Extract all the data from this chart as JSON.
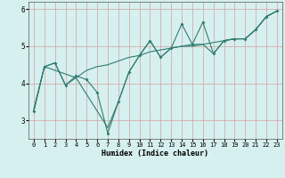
{
  "xlabel": "Humidex (Indice chaleur)",
  "background_color": "#d6f0ef",
  "grid_color": "#e8c8c8",
  "line_color": "#2e7d70",
  "xlim": [
    -0.5,
    23.5
  ],
  "ylim": [
    2.5,
    6.2
  ],
  "yticks": [
    3,
    4,
    5,
    6
  ],
  "xticks": [
    0,
    1,
    2,
    3,
    4,
    5,
    6,
    7,
    8,
    9,
    10,
    11,
    12,
    13,
    14,
    15,
    16,
    17,
    18,
    19,
    20,
    21,
    22,
    23
  ],
  "series_main": [
    [
      0,
      3.25
    ],
    [
      1,
      4.45
    ],
    [
      2,
      4.55
    ],
    [
      3,
      3.95
    ],
    [
      4,
      4.2
    ],
    [
      5,
      4.1
    ],
    [
      6,
      3.75
    ],
    [
      7,
      2.65
    ],
    [
      8,
      3.5
    ],
    [
      9,
      4.3
    ],
    [
      10,
      4.75
    ],
    [
      11,
      5.15
    ],
    [
      12,
      4.7
    ],
    [
      13,
      4.95
    ],
    [
      14,
      5.6
    ],
    [
      15,
      5.05
    ],
    [
      16,
      5.65
    ],
    [
      17,
      4.8
    ],
    [
      18,
      5.15
    ],
    [
      19,
      5.2
    ],
    [
      20,
      5.2
    ],
    [
      21,
      5.45
    ],
    [
      22,
      5.8
    ],
    [
      23,
      5.95
    ]
  ],
  "series_trend": [
    [
      0,
      3.3
    ],
    [
      1,
      4.45
    ],
    [
      2,
      4.55
    ],
    [
      3,
      3.95
    ],
    [
      4,
      4.15
    ],
    [
      5,
      4.35
    ],
    [
      6,
      4.45
    ],
    [
      7,
      4.5
    ],
    [
      8,
      4.6
    ],
    [
      9,
      4.7
    ],
    [
      10,
      4.75
    ],
    [
      11,
      4.85
    ],
    [
      12,
      4.9
    ],
    [
      13,
      4.95
    ],
    [
      14,
      5.0
    ],
    [
      15,
      5.0
    ],
    [
      16,
      5.05
    ],
    [
      17,
      5.1
    ],
    [
      18,
      5.15
    ],
    [
      19,
      5.2
    ],
    [
      20,
      5.2
    ],
    [
      21,
      5.45
    ],
    [
      22,
      5.8
    ],
    [
      23,
      5.95
    ]
  ],
  "series_alt": [
    [
      0,
      3.25
    ],
    [
      1,
      4.45
    ],
    [
      4,
      4.15
    ],
    [
      7,
      2.8
    ],
    [
      8,
      3.5
    ],
    [
      9,
      4.3
    ],
    [
      10,
      4.75
    ],
    [
      11,
      5.15
    ],
    [
      12,
      4.7
    ],
    [
      13,
      4.95
    ],
    [
      14,
      5.0
    ],
    [
      15,
      5.05
    ],
    [
      16,
      5.05
    ],
    [
      17,
      4.8
    ],
    [
      18,
      5.15
    ],
    [
      19,
      5.2
    ],
    [
      20,
      5.2
    ],
    [
      21,
      5.45
    ],
    [
      22,
      5.8
    ],
    [
      23,
      5.95
    ]
  ]
}
